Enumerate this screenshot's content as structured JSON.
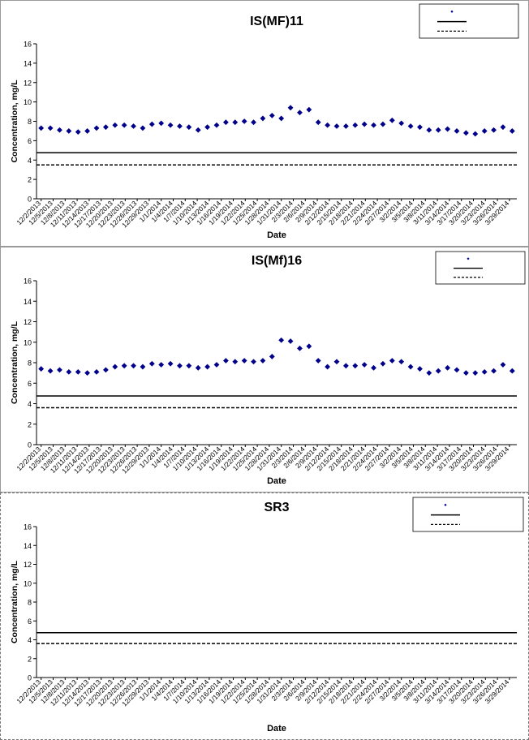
{
  "x_categories": [
    "12/2/2013",
    "12/5/2013",
    "12/8/2013",
    "12/11/2013",
    "12/14/2013",
    "12/17/2013",
    "12/20/2013",
    "12/23/2013",
    "12/26/2013",
    "12/29/2013",
    "1/1/2014",
    "1/4/2014",
    "1/7/2014",
    "1/10/2014",
    "1/13/2014",
    "1/16/2014",
    "1/19/2014",
    "1/22/2014",
    "1/25/2014",
    "1/28/2014",
    "1/31/2014",
    "2/3/2014",
    "2/6/2014",
    "2/9/2014",
    "2/12/2014",
    "2/15/2014",
    "2/18/2014",
    "2/21/2014",
    "2/24/2014",
    "2/27/2014",
    "3/2/2014",
    "3/5/2014",
    "3/8/2014",
    "3/11/2014",
    "3/14/2014",
    "3/17/2014",
    "3/20/2014",
    "3/23/2014",
    "3/26/2014",
    "3/29/2014"
  ],
  "chart_data": [
    {
      "type": "scatter",
      "title": "IS(MF)11",
      "xlabel": "Date",
      "ylabel": "Concentration, mg/L",
      "ylim": [
        0,
        16
      ],
      "yticks": [
        0,
        2,
        4,
        6,
        8,
        10,
        12,
        14,
        16
      ],
      "reference_lines": [
        {
          "style": "solid",
          "y": 4.75
        },
        {
          "style": "dashed",
          "y": 3.5
        }
      ],
      "legend": {
        "placement": "top-right"
      },
      "marker_color": "#00008b",
      "points": [
        [
          0,
          7.3
        ],
        [
          1,
          7.3
        ],
        [
          2,
          7.1
        ],
        [
          3,
          7.0
        ],
        [
          4,
          6.9
        ],
        [
          5,
          7.0
        ],
        [
          6,
          7.3
        ],
        [
          7,
          7.4
        ],
        [
          8,
          7.6
        ],
        [
          9,
          7.6
        ],
        [
          10,
          7.5
        ],
        [
          11,
          7.3
        ],
        [
          12,
          7.7
        ],
        [
          13,
          7.8
        ],
        [
          14,
          7.6
        ],
        [
          15,
          7.5
        ],
        [
          16,
          7.4
        ],
        [
          17,
          7.1
        ],
        [
          18,
          7.4
        ],
        [
          19,
          7.6
        ],
        [
          20,
          7.9
        ],
        [
          21,
          7.9
        ],
        [
          22,
          8.0
        ],
        [
          23,
          7.9
        ],
        [
          24,
          8.3
        ],
        [
          25,
          8.6
        ],
        [
          26,
          8.3
        ],
        [
          27,
          9.4
        ],
        [
          28,
          8.9
        ],
        [
          29,
          9.2
        ],
        [
          30,
          7.9
        ],
        [
          31,
          7.6
        ],
        [
          32,
          7.5
        ],
        [
          33,
          7.5
        ],
        [
          34,
          7.6
        ],
        [
          35,
          7.7
        ],
        [
          36,
          7.6
        ],
        [
          37,
          7.7
        ],
        [
          38,
          8.1
        ],
        [
          39,
          7.8
        ],
        [
          40,
          7.5
        ],
        [
          41,
          7.4
        ],
        [
          42,
          7.1
        ],
        [
          43,
          7.1
        ],
        [
          44,
          7.2
        ],
        [
          45,
          7.0
        ],
        [
          46,
          6.8
        ],
        [
          47,
          6.7
        ],
        [
          48,
          7.0
        ],
        [
          49,
          7.1
        ],
        [
          50,
          7.4
        ],
        [
          51,
          7.0
        ]
      ]
    },
    {
      "type": "scatter",
      "title": "IS(Mf)16",
      "xlabel": "Date",
      "ylabel": "Concentration, mg/L",
      "ylim": [
        0,
        16
      ],
      "yticks": [
        0,
        2,
        4,
        6,
        8,
        10,
        12,
        14,
        16
      ],
      "reference_lines": [
        {
          "style": "solid",
          "y": 4.75
        },
        {
          "style": "dashed",
          "y": 3.6
        }
      ],
      "legend": {
        "placement": "top-right"
      },
      "marker_color": "#00008b",
      "points": [
        [
          0,
          7.4
        ],
        [
          1,
          7.2
        ],
        [
          2,
          7.3
        ],
        [
          3,
          7.1
        ],
        [
          4,
          7.1
        ],
        [
          5,
          7.0
        ],
        [
          6,
          7.1
        ],
        [
          7,
          7.3
        ],
        [
          8,
          7.6
        ],
        [
          9,
          7.7
        ],
        [
          10,
          7.7
        ],
        [
          11,
          7.6
        ],
        [
          12,
          7.9
        ],
        [
          13,
          7.8
        ],
        [
          14,
          7.9
        ],
        [
          15,
          7.7
        ],
        [
          16,
          7.7
        ],
        [
          17,
          7.5
        ],
        [
          18,
          7.6
        ],
        [
          19,
          7.8
        ],
        [
          20,
          8.2
        ],
        [
          21,
          8.1
        ],
        [
          22,
          8.2
        ],
        [
          23,
          8.1
        ],
        [
          24,
          8.2
        ],
        [
          25,
          8.6
        ],
        [
          26,
          10.2
        ],
        [
          27,
          10.1
        ],
        [
          28,
          9.4
        ],
        [
          29,
          9.6
        ],
        [
          30,
          8.2
        ],
        [
          31,
          7.6
        ],
        [
          32,
          8.1
        ],
        [
          33,
          7.7
        ],
        [
          34,
          7.7
        ],
        [
          35,
          7.8
        ],
        [
          36,
          7.5
        ],
        [
          37,
          7.9
        ],
        [
          38,
          8.2
        ],
        [
          39,
          8.1
        ],
        [
          40,
          7.6
        ],
        [
          41,
          7.4
        ],
        [
          42,
          7.0
        ],
        [
          43,
          7.2
        ],
        [
          44,
          7.5
        ],
        [
          45,
          7.3
        ],
        [
          46,
          7.0
        ],
        [
          47,
          7.0
        ],
        [
          48,
          7.1
        ],
        [
          49,
          7.2
        ],
        [
          50,
          7.8
        ],
        [
          51,
          7.2
        ]
      ]
    },
    {
      "type": "scatter",
      "title": "SR3",
      "xlabel": "Date",
      "ylabel": "Concentration, mg/L",
      "ylim": [
        0,
        16
      ],
      "yticks": [
        0,
        2,
        4,
        6,
        8,
        10,
        12,
        14,
        16
      ],
      "reference_lines": [
        {
          "style": "solid",
          "y": 4.75
        },
        {
          "style": "dashed",
          "y": 3.6
        }
      ],
      "legend": {
        "placement": "top-right"
      },
      "marker_color": "#00008b",
      "points": []
    }
  ]
}
